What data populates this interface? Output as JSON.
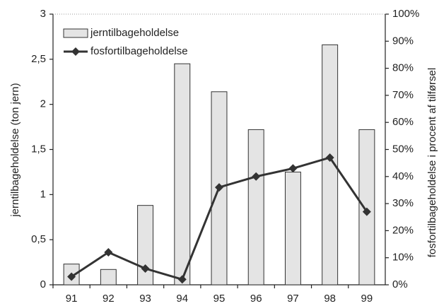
{
  "chart_data": {
    "type": "bar",
    "y_label": "jerntilbageholdelse (ton jern)",
    "y2_label": "fosfortilbageholdelse i procent af tilførsel",
    "categories": [
      "91",
      "92",
      "93",
      "94",
      "95",
      "96",
      "97",
      "98",
      "99"
    ],
    "series": [
      {
        "name": "jerntilbageholdelse",
        "type": "bar",
        "color": "#e4e4e4",
        "values": [
          0.23,
          0.17,
          0.88,
          2.45,
          2.14,
          1.72,
          1.25,
          2.66,
          1.72
        ]
      },
      {
        "name": "fosfortilbageholdelse",
        "type": "line",
        "axis": "y2",
        "color": "#333333",
        "values": [
          3,
          12,
          6,
          2,
          36,
          40,
          43,
          47,
          27
        ]
      }
    ],
    "ylim": [
      0,
      3
    ],
    "yticks": [
      0,
      {
        "value": 0.5,
        "label": "0,5"
      },
      1,
      {
        "value": 1.5,
        "label": "1,5"
      },
      2,
      {
        "value": 2.5,
        "label": "2,5"
      },
      3
    ],
    "y2lim": [
      0,
      100
    ],
    "y2ticks": [
      {
        "value": 0,
        "label": "0%"
      },
      {
        "value": 10,
        "label": "10%"
      },
      {
        "value": 20,
        "label": "20%"
      },
      {
        "value": 30,
        "label": "30%"
      },
      {
        "value": 40,
        "label": "40%"
      },
      {
        "value": 50,
        "label": "50%"
      },
      {
        "value": 60,
        "label": "60%"
      },
      {
        "value": 70,
        "label": "70%"
      },
      {
        "value": 80,
        "label": "80%"
      },
      {
        "value": 90,
        "label": "90%"
      },
      {
        "value": 100,
        "label": "100%"
      }
    ],
    "legend": "top-left"
  }
}
